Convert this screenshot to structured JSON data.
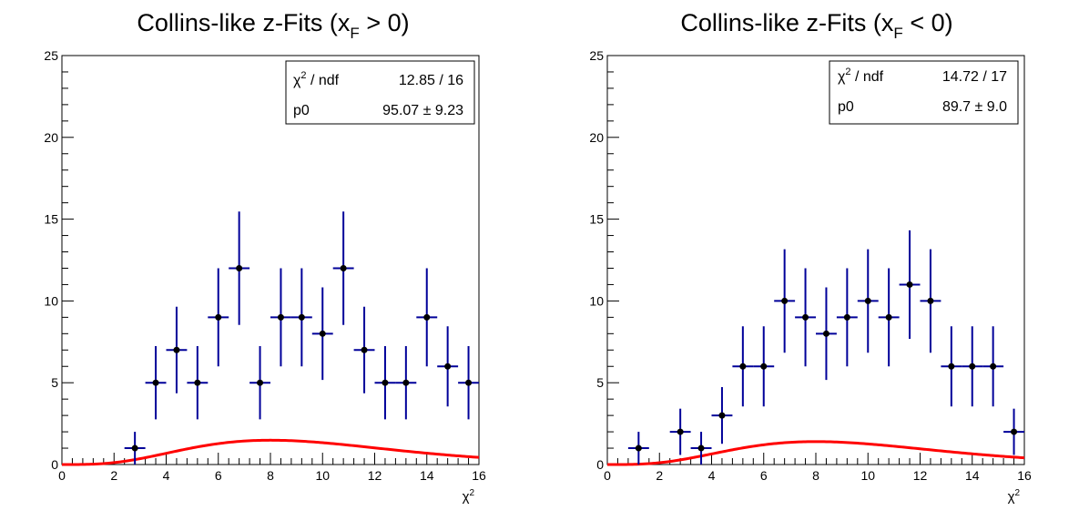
{
  "chart_data": [
    {
      "type": "scatter",
      "title_main": "Collins-like z-Fits (x",
      "title_sub": "F",
      "title_tail": " > 0)",
      "xlabel_base": "χ",
      "xlabel_sup": "2",
      "xlim": [
        0,
        16
      ],
      "ylim": [
        0,
        25
      ],
      "xticks": [
        0,
        2,
        4,
        6,
        8,
        10,
        12,
        14,
        16
      ],
      "yticks": [
        0,
        5,
        10,
        15,
        20,
        25
      ],
      "bin_width": 0.8,
      "stats": {
        "row1_label_base": "χ",
        "row1_label_sup": "2",
        "row1_label_tail": " / ndf",
        "row1_value": "12.85 / 16",
        "row2_label": "p0",
        "row2_value": "95.07 ± 9.23"
      },
      "fit": {
        "p0": 95.07,
        "shape": "chi-square pdf k=10 (scaled)",
        "color": "#ff0000"
      },
      "series": [
        {
          "marker_color": "#000000",
          "errorbar_color": "#000099",
          "x": [
            2.8,
            3.6,
            4.4,
            5.2,
            6.0,
            6.8,
            7.6,
            8.4,
            9.2,
            10.0,
            10.8,
            11.6,
            12.4,
            13.2,
            14.0,
            14.8,
            15.6
          ],
          "y": [
            1,
            5,
            7,
            5,
            9,
            12,
            5,
            9,
            9,
            8,
            12,
            7,
            5,
            5,
            9,
            6,
            5
          ]
        }
      ]
    },
    {
      "type": "scatter",
      "title_main": "Collins-like z-Fits (x",
      "title_sub": "F",
      "title_tail": " < 0)",
      "xlabel_base": "χ",
      "xlabel_sup": "2",
      "xlim": [
        0,
        16
      ],
      "ylim": [
        0,
        25
      ],
      "xticks": [
        0,
        2,
        4,
        6,
        8,
        10,
        12,
        14,
        16
      ],
      "yticks": [
        0,
        5,
        10,
        15,
        20,
        25
      ],
      "bin_width": 0.8,
      "stats": {
        "row1_label_base": "χ",
        "row1_label_sup": "2",
        "row1_label_tail": " / ndf",
        "row1_value": "14.72 / 17",
        "row2_label": "p0",
        "row2_value": "89.7 ± 9.0"
      },
      "fit": {
        "p0": 89.7,
        "shape": "chi-square pdf k=10 (scaled)",
        "color": "#ff0000"
      },
      "series": [
        {
          "marker_color": "#000000",
          "errorbar_color": "#000099",
          "x": [
            1.2,
            2.8,
            3.6,
            4.4,
            5.2,
            6.0,
            6.8,
            7.6,
            8.4,
            9.2,
            10.0,
            10.8,
            11.6,
            12.4,
            13.2,
            14.0,
            14.8,
            15.6
          ],
          "y": [
            1,
            2,
            1,
            3,
            6,
            6,
            10,
            9,
            8,
            9,
            10,
            9,
            11,
            10,
            6,
            6,
            6,
            2
          ]
        }
      ]
    }
  ]
}
